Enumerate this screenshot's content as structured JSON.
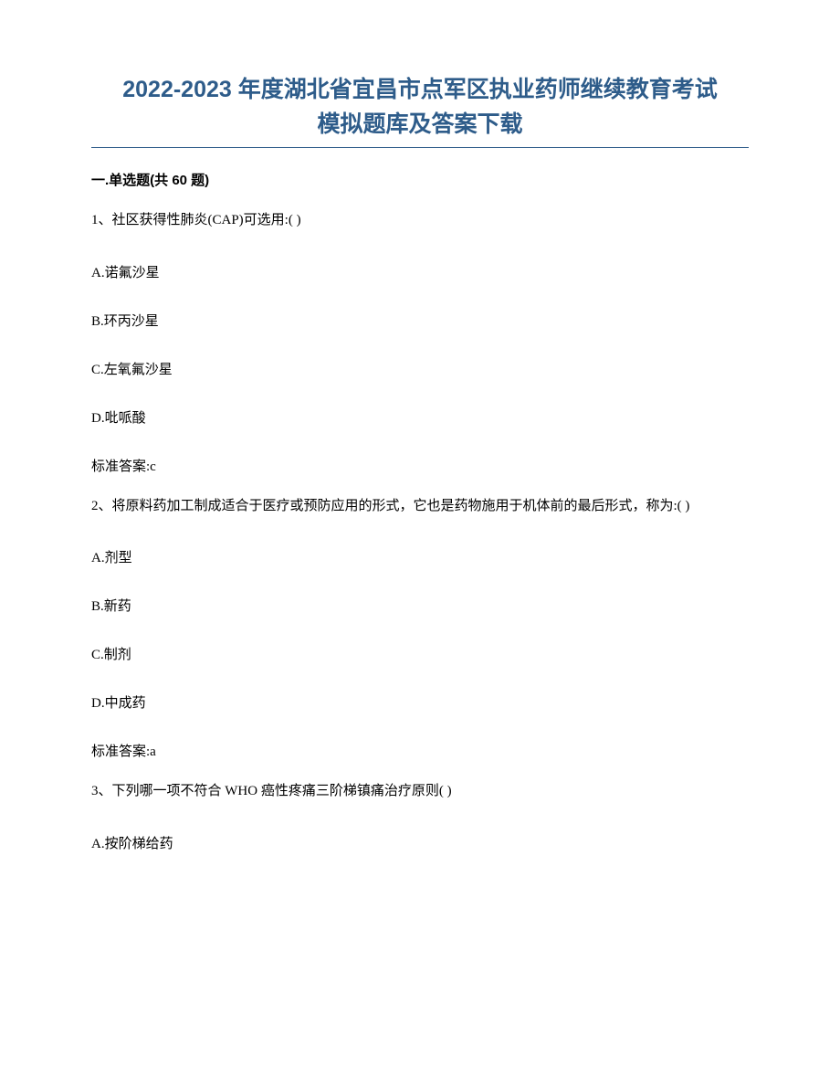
{
  "title_line1": "2022-2023 年度湖北省宜昌市点军区执业药师继续教育考试",
  "title_line2": "模拟题库及答案下载",
  "section_label": "一.单选题(共 60 题)",
  "questions": [
    {
      "stem": "1、社区获得性肺炎(CAP)可选用:( )",
      "options": [
        "A.诺氟沙星",
        "B.环丙沙星",
        "C.左氧氟沙星",
        "D.吡哌酸"
      ],
      "answer": "标准答案:c"
    },
    {
      "stem": "2、将原料药加工制成适合于医疗或预防应用的形式，它也是药物施用于机体前的最后形式，称为:( )",
      "options": [
        "A.剂型",
        "B.新药",
        "C.制剂",
        "D.中成药"
      ],
      "answer": "标准答案:a"
    },
    {
      "stem": "3、下列哪一项不符合 WHO 癌性疼痛三阶梯镇痛治疗原则( )",
      "options": [
        "A.按阶梯给药"
      ],
      "answer": null
    }
  ],
  "colors": {
    "title": "#2e5c8a",
    "text": "#000000",
    "background": "#ffffff",
    "divider": "#2e5c8a"
  },
  "typography": {
    "title_fontsize": 25,
    "body_fontsize": 15,
    "title_weight": "bold",
    "title_font": "SimHei",
    "body_font": "SimSun"
  }
}
